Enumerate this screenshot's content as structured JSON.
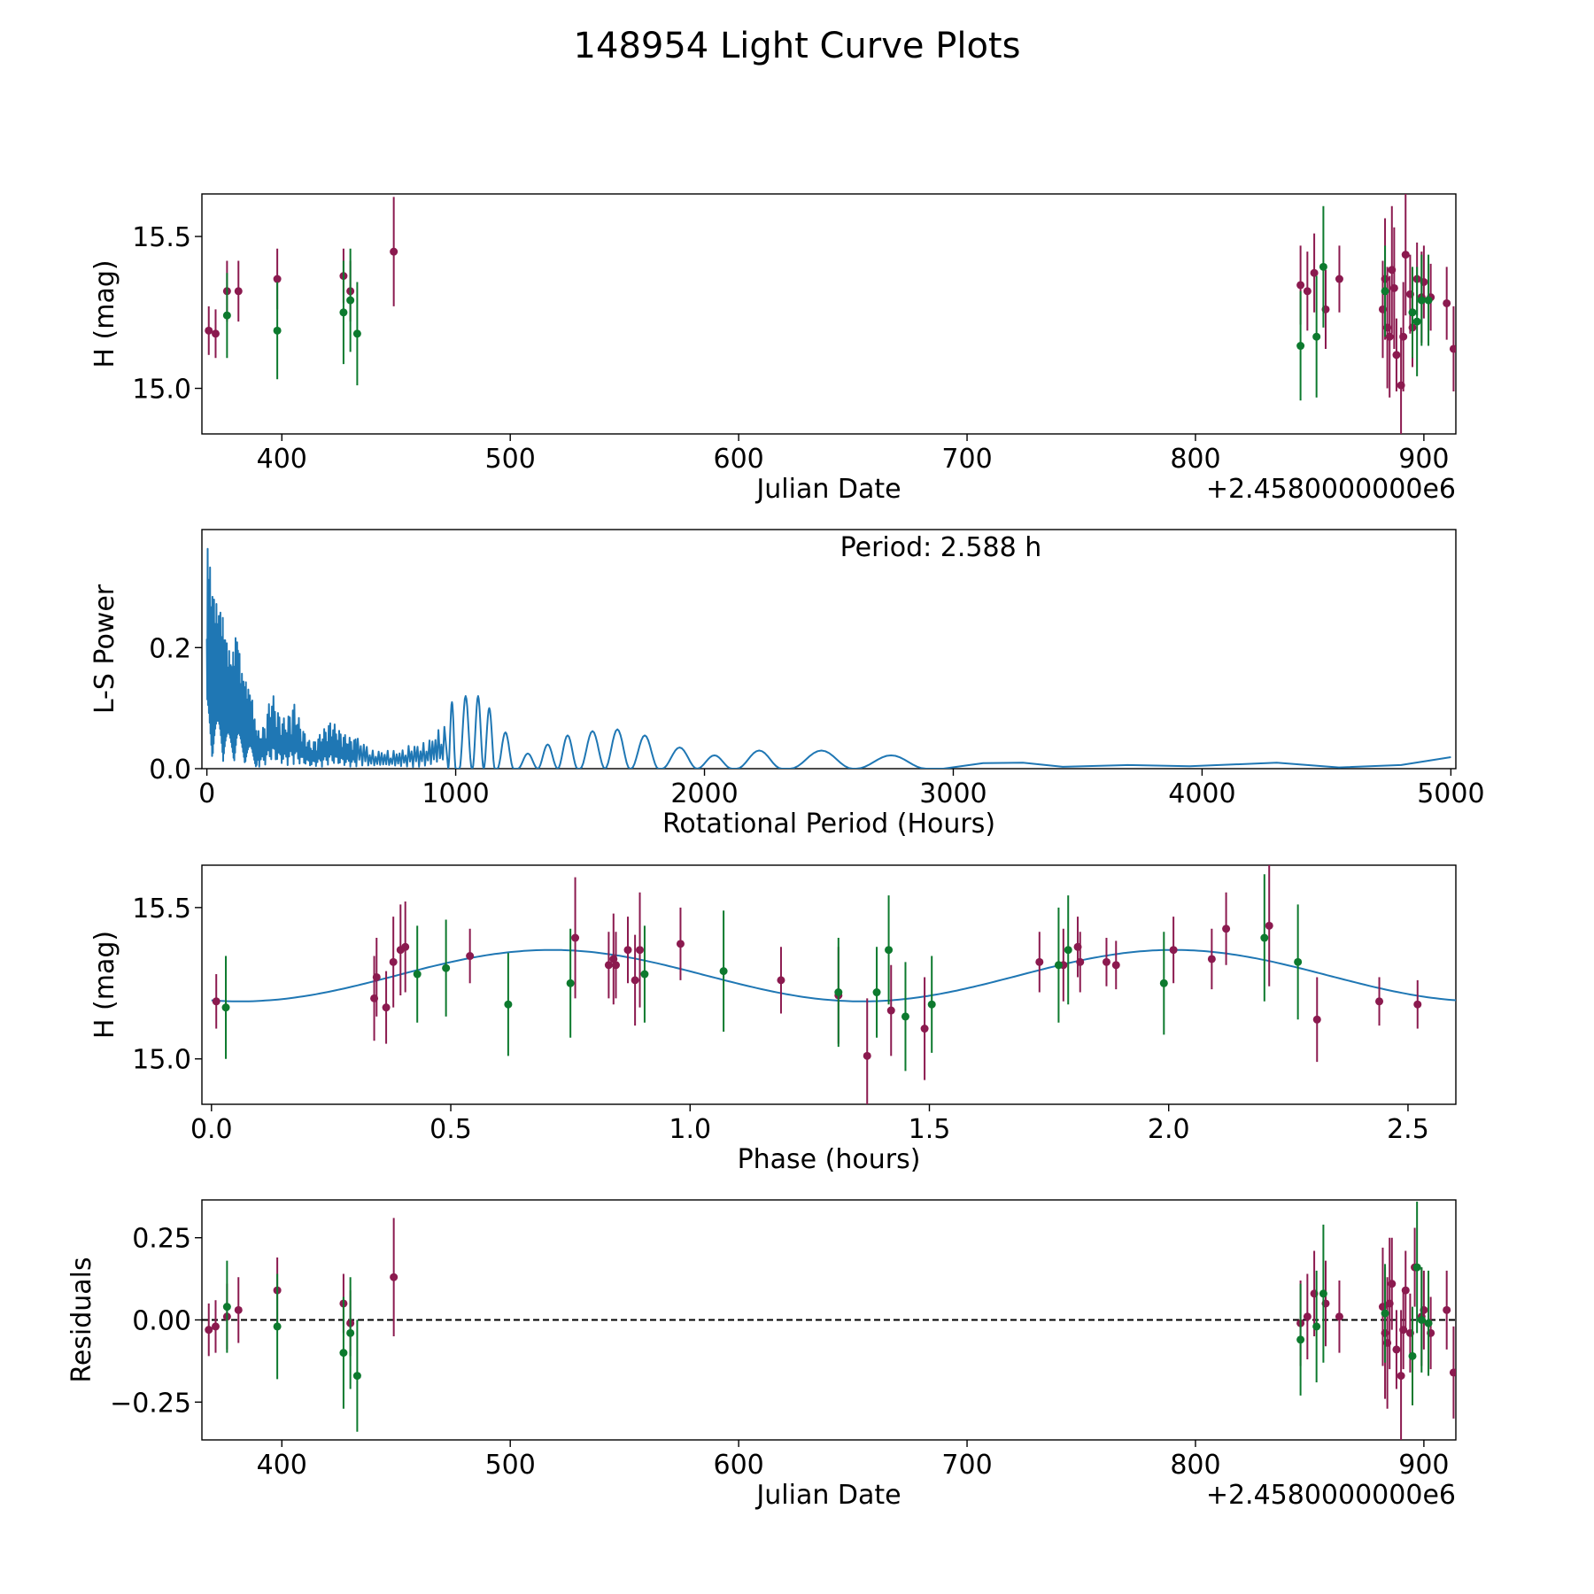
{
  "figure": {
    "title": "148954 Light Curve Plots"
  },
  "colors": {
    "red": "#8b1a4f",
    "green": "#0d7a2e",
    "line": "#1f77b4",
    "axis": "#000000"
  },
  "chart_data": [
    {
      "type": "scatter",
      "name": "light-curve",
      "xlabel": "Julian Date",
      "ylabel": "H (mag)",
      "offset_text": "+2.4580000000e6",
      "xlim": [
        365,
        914
      ],
      "ylim": [
        14.85,
        15.64
      ],
      "xticks": [
        400,
        500,
        600,
        700,
        800,
        900
      ],
      "yticks": [
        15.0,
        15.5
      ],
      "ytick_labels": [
        "15.0",
        "15.5"
      ],
      "series": [
        {
          "name": "red",
          "points": [
            [
              368,
              15.19,
              0.08
            ],
            [
              371,
              15.18,
              0.08
            ],
            [
              376,
              15.32,
              0.1
            ],
            [
              381,
              15.32,
              0.1
            ],
            [
              398,
              15.36,
              0.1
            ],
            [
              427,
              15.37,
              0.09
            ],
            [
              430,
              15.32,
              0.1
            ],
            [
              449,
              15.45,
              0.18
            ],
            [
              846,
              15.34,
              0.13
            ],
            [
              849,
              15.32,
              0.13
            ],
            [
              852,
              15.38,
              0.13
            ],
            [
              857,
              15.26,
              0.13
            ],
            [
              863,
              15.36,
              0.11
            ],
            [
              882,
              15.26,
              0.16
            ],
            [
              883,
              15.36,
              0.2
            ],
            [
              884,
              15.2,
              0.2
            ],
            [
              885,
              15.17,
              0.2
            ],
            [
              886,
              15.39,
              0.21
            ],
            [
              887,
              15.33,
              0.2
            ],
            [
              888,
              15.11,
              0.12
            ],
            [
              890,
              15.01,
              0.19
            ],
            [
              891,
              15.17,
              0.18
            ],
            [
              892,
              15.44,
              0.2
            ],
            [
              894,
              15.31,
              0.13
            ],
            [
              895,
              15.2,
              0.13
            ],
            [
              897,
              15.36,
              0.12
            ],
            [
              899,
              15.3,
              0.15
            ],
            [
              900,
              15.35,
              0.12
            ],
            [
              903,
              15.3,
              0.11
            ],
            [
              910,
              15.28,
              0.12
            ],
            [
              913,
              15.13,
              0.14
            ]
          ]
        },
        {
          "name": "green",
          "points": [
            [
              376,
              15.24,
              0.14
            ],
            [
              398,
              15.19,
              0.16
            ],
            [
              427,
              15.25,
              0.17
            ],
            [
              430,
              15.29,
              0.17
            ],
            [
              433,
              15.18,
              0.17
            ],
            [
              846,
              15.14,
              0.18
            ],
            [
              853,
              15.17,
              0.2
            ],
            [
              856,
              15.4,
              0.2
            ],
            [
              883,
              15.32,
              0.15
            ],
            [
              895,
              15.25,
              0.15
            ],
            [
              897,
              15.22,
              0.18
            ],
            [
              899,
              15.29,
              0.15
            ],
            [
              902,
              15.29,
              0.15
            ]
          ]
        }
      ]
    },
    {
      "type": "line",
      "name": "periodogram",
      "xlabel": "Rotational Period (Hours)",
      "ylabel": "L-S Power",
      "annotation": "Period: 2.588 h",
      "xlim": [
        -20,
        5020
      ],
      "ylim": [
        0,
        0.395
      ],
      "xticks": [
        0,
        1000,
        2000,
        3000,
        4000,
        5000
      ],
      "yticks": [
        0.0,
        0.2
      ],
      "ytick_labels": [
        "0.0",
        "0.2"
      ],
      "envelope": [
        [
          0,
          0.39
        ],
        [
          20,
          0.3
        ],
        [
          40,
          0.27
        ],
        [
          60,
          0.26
        ],
        [
          80,
          0.21
        ],
        [
          100,
          0.18
        ],
        [
          120,
          0.23
        ],
        [
          140,
          0.16
        ],
        [
          160,
          0.14
        ],
        [
          180,
          0.12
        ],
        [
          200,
          0.06
        ],
        [
          230,
          0.07
        ],
        [
          260,
          0.13
        ],
        [
          290,
          0.09
        ],
        [
          320,
          0.08
        ],
        [
          350,
          0.11
        ],
        [
          380,
          0.07
        ],
        [
          420,
          0.04
        ],
        [
          460,
          0.06
        ],
        [
          500,
          0.08
        ],
        [
          540,
          0.06
        ],
        [
          580,
          0.05
        ],
        [
          620,
          0.05
        ],
        [
          660,
          0.03
        ],
        [
          700,
          0.03
        ],
        [
          740,
          0.03
        ],
        [
          780,
          0.03
        ],
        [
          820,
          0.04
        ],
        [
          860,
          0.04
        ],
        [
          900,
          0.05
        ],
        [
          940,
          0.07
        ]
      ],
      "peaks": [
        [
          985,
          0.11
        ],
        [
          1040,
          0.12
        ],
        [
          1090,
          0.12
        ],
        [
          1135,
          0.1
        ],
        [
          1200,
          0.06
        ],
        [
          1290,
          0.025
        ],
        [
          1370,
          0.04
        ],
        [
          1450,
          0.055
        ],
        [
          1550,
          0.062
        ],
        [
          1650,
          0.065
        ],
        [
          1760,
          0.055
        ],
        [
          1900,
          0.035
        ],
        [
          2040,
          0.022
        ],
        [
          2220,
          0.03
        ],
        [
          2470,
          0.03
        ],
        [
          2750,
          0.022
        ]
      ],
      "tail": [
        [
          2960,
          0
        ],
        [
          3120,
          0.009
        ],
        [
          3280,
          0.01
        ],
        [
          3440,
          0.003
        ],
        [
          3700,
          0.006
        ],
        [
          3950,
          0.004
        ],
        [
          4300,
          0.01
        ],
        [
          4550,
          0.002
        ],
        [
          4800,
          0.006
        ],
        [
          5000,
          0.019
        ]
      ]
    },
    {
      "type": "scatter",
      "name": "phase-folded",
      "xlabel": "Phase (hours)",
      "ylabel": "H (mag)",
      "xlim": [
        -0.02,
        2.6
      ],
      "ylim": [
        14.85,
        15.64
      ],
      "xticks": [
        0.0,
        0.5,
        1.0,
        1.5,
        2.0,
        2.5
      ],
      "xtick_labels": [
        "0.0",
        "0.5",
        "1.0",
        "1.5",
        "2.0",
        "2.5"
      ],
      "yticks": [
        15.0,
        15.5
      ],
      "ytick_labels": [
        "15.0",
        "15.5"
      ],
      "model": {
        "mean": 15.275,
        "amplitude": 0.085,
        "period": 1.3,
        "phase_max": 0.71
      },
      "series": [
        {
          "name": "red",
          "points": [
            [
              0.01,
              15.19,
              0.09
            ],
            [
              0.34,
              15.2,
              0.14
            ],
            [
              0.345,
              15.27,
              0.13
            ],
            [
              0.365,
              15.17,
              0.12
            ],
            [
              0.38,
              15.32,
              0.15
            ],
            [
              0.395,
              15.36,
              0.15
            ],
            [
              0.405,
              15.37,
              0.15
            ],
            [
              0.54,
              15.34,
              0.09
            ],
            [
              0.76,
              15.4,
              0.2
            ],
            [
              0.83,
              15.31,
              0.11
            ],
            [
              0.84,
              15.33,
              0.15
            ],
            [
              0.845,
              15.31,
              0.11
            ],
            [
              0.87,
              15.36,
              0.11
            ],
            [
              0.885,
              15.26,
              0.15
            ],
            [
              0.895,
              15.36,
              0.19
            ],
            [
              0.98,
              15.38,
              0.12
            ],
            [
              1.19,
              15.26,
              0.11
            ],
            [
              1.31,
              15.21,
              0.16
            ],
            [
              1.37,
              15.01,
              0.19
            ],
            [
              1.42,
              15.16,
              0.15
            ],
            [
              1.49,
              15.1,
              0.17
            ],
            [
              1.73,
              15.32,
              0.1
            ],
            [
              1.78,
              15.31,
              0.12
            ],
            [
              1.81,
              15.37,
              0.1
            ],
            [
              1.815,
              15.32,
              0.1
            ],
            [
              1.87,
              15.32,
              0.08
            ],
            [
              1.89,
              15.31,
              0.08
            ],
            [
              2.01,
              15.36,
              0.11
            ],
            [
              2.09,
              15.33,
              0.1
            ],
            [
              2.12,
              15.43,
              0.12
            ],
            [
              2.21,
              15.44,
              0.2
            ],
            [
              2.31,
              15.13,
              0.14
            ],
            [
              2.44,
              15.19,
              0.08
            ],
            [
              2.52,
              15.18,
              0.08
            ]
          ]
        },
        {
          "name": "green",
          "points": [
            [
              0.03,
              15.17,
              0.17
            ],
            [
              0.43,
              15.28,
              0.16
            ],
            [
              0.49,
              15.3,
              0.16
            ],
            [
              0.62,
              15.18,
              0.17
            ],
            [
              0.75,
              15.25,
              0.18
            ],
            [
              0.905,
              15.28,
              0.16
            ],
            [
              1.07,
              15.29,
              0.2
            ],
            [
              1.31,
              15.22,
              0.18
            ],
            [
              1.39,
              15.22,
              0.15
            ],
            [
              1.415,
              15.36,
              0.18
            ],
            [
              1.45,
              15.14,
              0.18
            ],
            [
              1.505,
              15.18,
              0.16
            ],
            [
              1.77,
              15.31,
              0.19
            ],
            [
              1.79,
              15.36,
              0.18
            ],
            [
              1.99,
              15.25,
              0.17
            ],
            [
              2.2,
              15.4,
              0.21
            ],
            [
              2.27,
              15.32,
              0.19
            ]
          ]
        }
      ]
    },
    {
      "type": "scatter",
      "name": "residuals",
      "xlabel": "Julian Date",
      "ylabel": "Residuals",
      "offset_text": "+2.4580000000e6",
      "xlim": [
        365,
        914
      ],
      "ylim": [
        -0.365,
        0.365
      ],
      "xticks": [
        400,
        500,
        600,
        700,
        800,
        900
      ],
      "yticks": [
        0.25,
        0.0,
        -0.25
      ],
      "ytick_labels": [
        "0.25",
        "0.00",
        "−0.25"
      ],
      "zero_line": true,
      "series": [
        {
          "name": "red",
          "points": [
            [
              368,
              -0.03,
              0.08
            ],
            [
              371,
              -0.02,
              0.08
            ],
            [
              376,
              0.01,
              0.1
            ],
            [
              381,
              0.03,
              0.1
            ],
            [
              398,
              0.09,
              0.1
            ],
            [
              427,
              0.05,
              0.09
            ],
            [
              430,
              -0.01,
              0.1
            ],
            [
              449,
              0.13,
              0.18
            ],
            [
              846,
              -0.01,
              0.13
            ],
            [
              849,
              0.01,
              0.13
            ],
            [
              852,
              0.08,
              0.13
            ],
            [
              857,
              0.05,
              0.13
            ],
            [
              863,
              0.01,
              0.11
            ],
            [
              882,
              0.04,
              0.18
            ],
            [
              883,
              -0.04,
              0.2
            ],
            [
              884,
              -0.07,
              0.2
            ],
            [
              885,
              0.05,
              0.2
            ],
            [
              886,
              0.11,
              0.14
            ],
            [
              888,
              -0.09,
              0.12
            ],
            [
              890,
              -0.17,
              0.2
            ],
            [
              891,
              -0.03,
              0.12
            ],
            [
              892,
              0.09,
              0.12
            ],
            [
              894,
              -0.04,
              0.12
            ],
            [
              896,
              0.16,
              0.12
            ],
            [
              899,
              0.01,
              0.15
            ],
            [
              900,
              0.03,
              0.12
            ],
            [
              903,
              -0.04,
              0.11
            ],
            [
              910,
              0.03,
              0.12
            ],
            [
              913,
              -0.16,
              0.14
            ]
          ]
        },
        {
          "name": "green",
          "points": [
            [
              376,
              0.04,
              0.14
            ],
            [
              398,
              -0.02,
              0.16
            ],
            [
              427,
              -0.1,
              0.17
            ],
            [
              430,
              -0.04,
              0.17
            ],
            [
              433,
              -0.17,
              0.17
            ],
            [
              846,
              -0.06,
              0.17
            ],
            [
              853,
              -0.02,
              0.17
            ],
            [
              856,
              0.08,
              0.21
            ],
            [
              883,
              0.02,
              0.15
            ],
            [
              895,
              -0.11,
              0.15
            ],
            [
              897,
              0.16,
              0.2
            ],
            [
              899,
              0.0,
              0.16
            ],
            [
              902,
              -0.01,
              0.16
            ]
          ]
        }
      ]
    }
  ]
}
